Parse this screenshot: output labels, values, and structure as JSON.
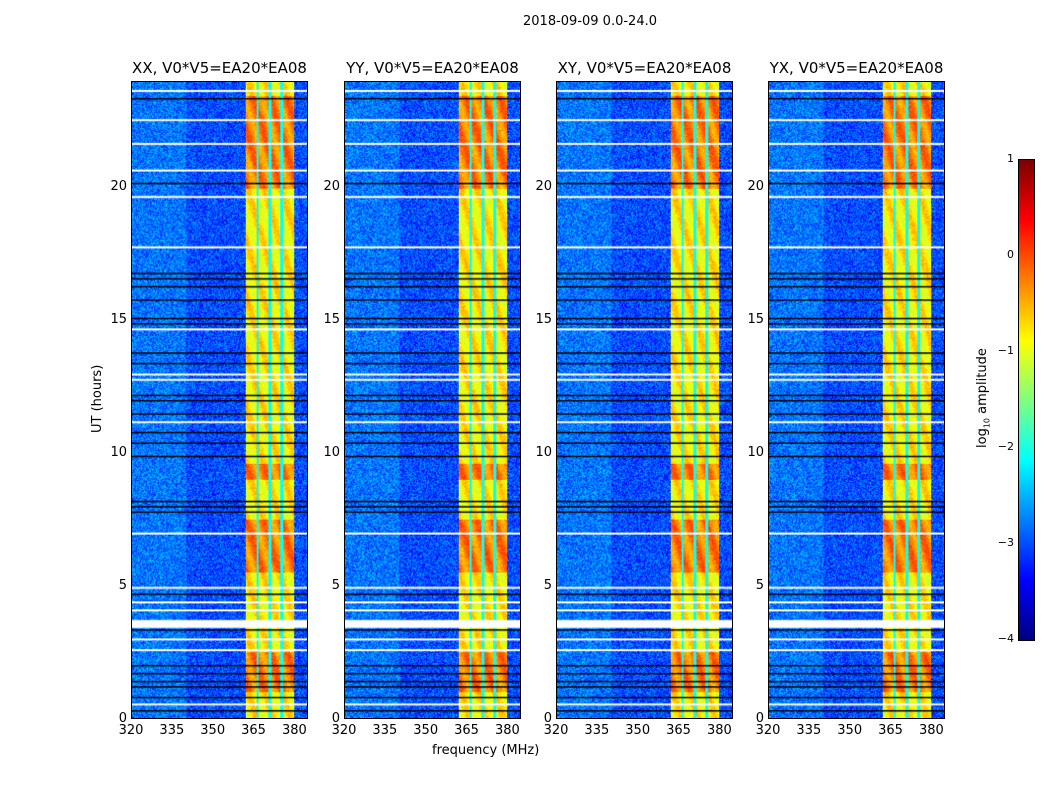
{
  "chart_data": {
    "type": "heatmap",
    "title": "2018-09-09 0.0-24.0",
    "panels": [
      {
        "title": "XX, V0*V5=EA20*EA08"
      },
      {
        "title": "YY, V0*V5=EA20*EA08"
      },
      {
        "title": "XY, V0*V5=EA20*EA08"
      },
      {
        "title": "YX, V0*V5=EA20*EA08"
      }
    ],
    "xlabel": "frequency (MHz)",
    "ylabel": "UT (hours)",
    "xlim": [
      320,
      385
    ],
    "ylim": [
      0,
      24
    ],
    "xticks": [
      "320",
      "335",
      "350",
      "365",
      "380"
    ],
    "xtick_values": [
      320,
      335,
      350,
      365,
      380
    ],
    "yticks": [
      "0",
      "5",
      "10",
      "15",
      "20"
    ],
    "ytick_values": [
      0,
      5,
      10,
      15,
      20
    ],
    "colorbar": {
      "label": "log10 amplitude",
      "label_main": "log",
      "label_sub": "10",
      "label_rest": " amplitude",
      "colormap": "jet",
      "range": [
        -4,
        1
      ],
      "ticks": [
        "1",
        "0",
        "−1",
        "−2",
        "−3",
        "−4"
      ],
      "tick_values": [
        1,
        0,
        -1,
        -2,
        -3,
        -4
      ]
    },
    "background_level": -3.0,
    "emission_band_mhz": [
      362,
      380
    ],
    "emission_level": -0.8,
    "subband_gaps_mhz": [
      366.5,
      371,
      375.5
    ],
    "strong_intervals_hours": [
      [
        1.0,
        2.5
      ],
      [
        5.5,
        7.5
      ],
      [
        9.0,
        9.6
      ],
      [
        20.0,
        23.5
      ]
    ],
    "flagged_white_hours": [
      0.55,
      2.6,
      3.0,
      3.7,
      4.1,
      4.4,
      4.95,
      7.0,
      11.2,
      12.8,
      13.0,
      14.7,
      17.8,
      19.7,
      20.7,
      21.7,
      22.6,
      23.7
    ],
    "flagged_black_hours": [
      0.3,
      0.8,
      1.2,
      1.4,
      1.7,
      2.0,
      3.35,
      4.7,
      7.8,
      8.0,
      8.2,
      9.9,
      10.4,
      10.8,
      11.5,
      12.0,
      12.2,
      13.4,
      13.8,
      14.9,
      15.1,
      15.8,
      16.3,
      16.6,
      16.8,
      20.2,
      23.4
    ]
  }
}
